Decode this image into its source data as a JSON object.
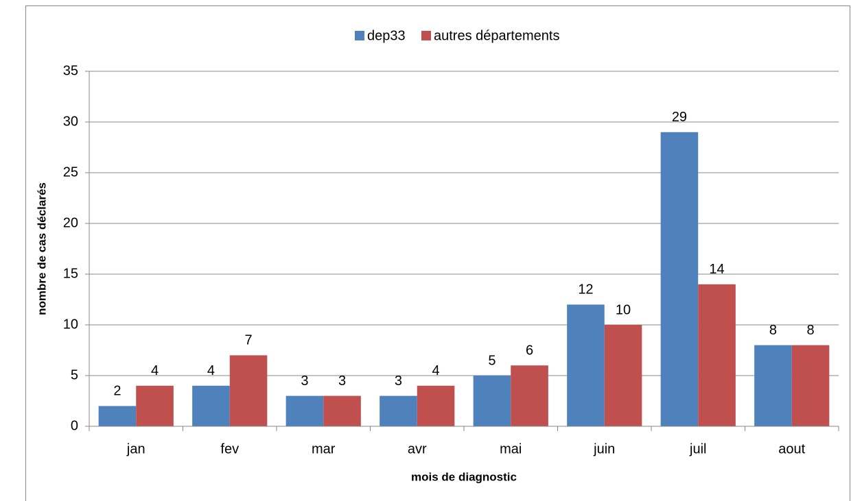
{
  "chart_data": {
    "type": "bar",
    "categories": [
      "jan",
      "fev",
      "mar",
      "avr",
      "mai",
      "juin",
      "juil",
      "aout"
    ],
    "series": [
      {
        "name": "dep33",
        "color": "#4f81bd",
        "values": [
          2,
          4,
          3,
          3,
          5,
          12,
          29,
          8
        ]
      },
      {
        "name": "autres départements",
        "color": "#c0504d",
        "values": [
          4,
          7,
          3,
          4,
          6,
          10,
          14,
          8
        ]
      }
    ],
    "xlabel": "mois de diagnostic",
    "ylabel": "nombre de cas déclarés",
    "ylim": [
      0,
      35
    ],
    "yticks": [
      0,
      5,
      10,
      15,
      20,
      25,
      30,
      35
    ],
    "grid": true,
    "legend": "top",
    "data_labels": true
  }
}
